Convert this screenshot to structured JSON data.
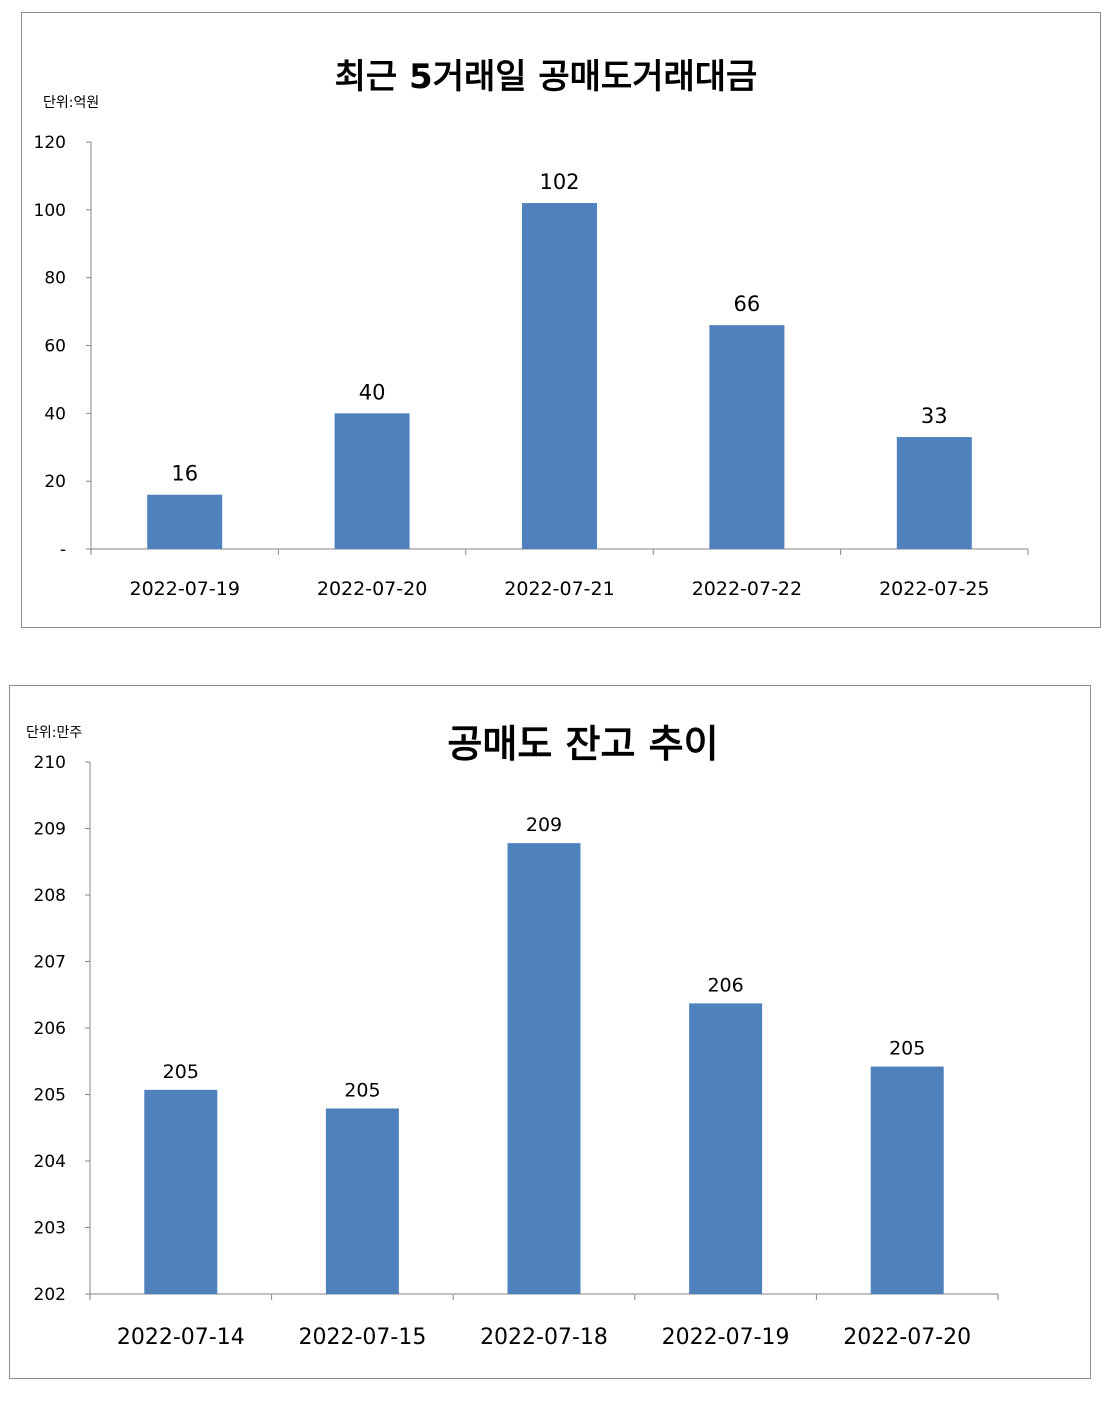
{
  "chart_data": [
    {
      "type": "bar",
      "title": "최근 5거래일 공매도거래대금",
      "unit_label": "단위:억원",
      "categories": [
        "2022-07-19",
        "2022-07-20",
        "2022-07-21",
        "2022-07-22",
        "2022-07-25"
      ],
      "values": [
        16,
        40,
        102,
        66,
        33
      ],
      "data_labels": [
        "16",
        "40",
        "102",
        "66",
        "33"
      ],
      "ylim": [
        0,
        120
      ],
      "yticks": [
        0,
        20,
        40,
        60,
        80,
        100,
        120
      ],
      "ytick_labels": [
        "-",
        "20",
        "40",
        "60",
        "80",
        "100",
        "120"
      ],
      "bar_color": "#4f81bd",
      "grid": false,
      "legend": "none"
    },
    {
      "type": "bar",
      "title": "공매도 잔고 추이",
      "unit_label": "단위:만주",
      "categories": [
        "2022-07-14",
        "2022-07-15",
        "2022-07-18",
        "2022-07-19",
        "2022-07-20"
      ],
      "values": [
        205.07,
        204.79,
        208.78,
        206.37,
        205.42
      ],
      "data_labels": [
        "205",
        "205",
        "209",
        "206",
        "205"
      ],
      "ylim": [
        202,
        210
      ],
      "yticks": [
        202,
        203,
        204,
        205,
        206,
        207,
        208,
        209,
        210
      ],
      "ytick_labels": [
        "202",
        "203",
        "204",
        "205",
        "206",
        "207",
        "208",
        "209",
        "210"
      ],
      "bar_color": "#4f81bd",
      "grid": false,
      "legend": "none"
    }
  ]
}
